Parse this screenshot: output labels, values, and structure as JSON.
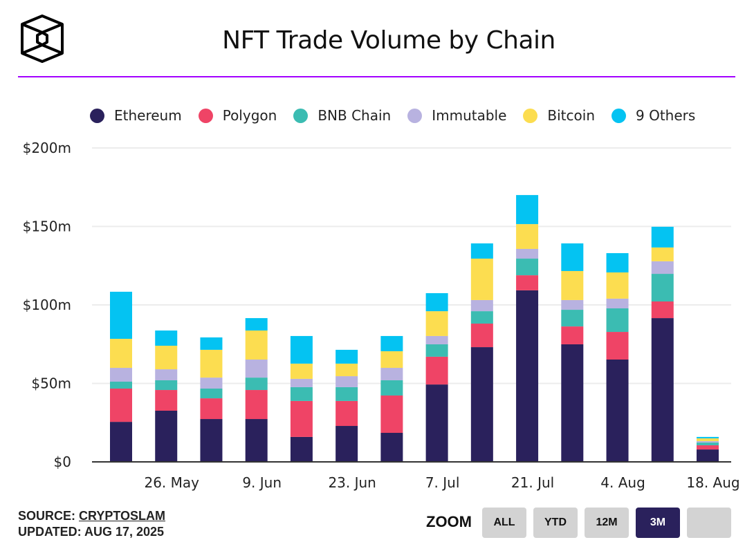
{
  "header": {
    "title": "NFT Trade Volume by Chain"
  },
  "footer": {
    "source_label": "SOURCE:",
    "source_link": "CRYPTOSLAM",
    "updated": "UPDATED: AUG 17, 2025"
  },
  "zoom": {
    "label": "ZOOM",
    "buttons": [
      "ALL",
      "YTD",
      "12M",
      "3M",
      ""
    ],
    "active": "3M"
  },
  "chart_data": {
    "type": "bar",
    "stacked": true,
    "title": "NFT Trade Volume by Chain",
    "ylabel": "",
    "xlabel": "",
    "ylim": [
      0,
      200
    ],
    "y_ticks": [
      0,
      50,
      100,
      150,
      200
    ],
    "y_tick_labels": [
      "$0",
      "$50m",
      "$100m",
      "$150m",
      "$200m"
    ],
    "x_tick_labels": [
      {
        "index": 1,
        "label": "26. May"
      },
      {
        "index": 3,
        "label": "9. Jun"
      },
      {
        "index": 5,
        "label": "23. Jun"
      },
      {
        "index": 7,
        "label": "7. Jul"
      },
      {
        "index": 9,
        "label": "21. Jul"
      },
      {
        "index": 11,
        "label": "4. Aug"
      },
      {
        "index": 13,
        "label": "18. Aug"
      }
    ],
    "grid": true,
    "legend_position": "top",
    "series": [
      {
        "name": "Ethereum",
        "color": "#2a215c",
        "values": [
          25.5,
          32.6,
          27.3,
          27.3,
          15.9,
          22.9,
          18.5,
          49.3,
          73.1,
          109.3,
          74.9,
          65.2,
          91.6,
          7.9
        ]
      },
      {
        "name": "Polygon",
        "color": "#ef4466",
        "values": [
          21.2,
          13.2,
          13.2,
          18.5,
          22.9,
          15.9,
          23.8,
          17.7,
          15.0,
          9.6,
          11.4,
          17.6,
          10.6,
          2.7
        ]
      },
      {
        "name": "BNB Chain",
        "color": "#3bbcb2",
        "values": [
          4.4,
          6.2,
          6.2,
          7.9,
          8.8,
          8.8,
          9.7,
          7.9,
          7.9,
          10.6,
          10.6,
          15.0,
          17.6,
          1.7
        ]
      },
      {
        "name": "Immutable",
        "color": "#b8b2e0",
        "values": [
          8.8,
          7.0,
          7.0,
          11.5,
          5.3,
          7.0,
          7.9,
          5.3,
          7.1,
          6.2,
          6.2,
          6.2,
          8.0,
          0.9
        ]
      },
      {
        "name": "Bitcoin",
        "color": "#fcdd50",
        "values": [
          18.5,
          15.0,
          17.7,
          18.5,
          9.7,
          8.0,
          10.6,
          15.8,
          26.4,
          15.8,
          18.5,
          16.7,
          8.8,
          1.8
        ]
      },
      {
        "name": "9 Others",
        "color": "#04c3f2",
        "values": [
          30.0,
          9.7,
          7.9,
          7.9,
          17.6,
          8.8,
          9.7,
          11.5,
          9.7,
          18.5,
          17.6,
          12.3,
          13.2,
          0.9
        ]
      }
    ]
  }
}
